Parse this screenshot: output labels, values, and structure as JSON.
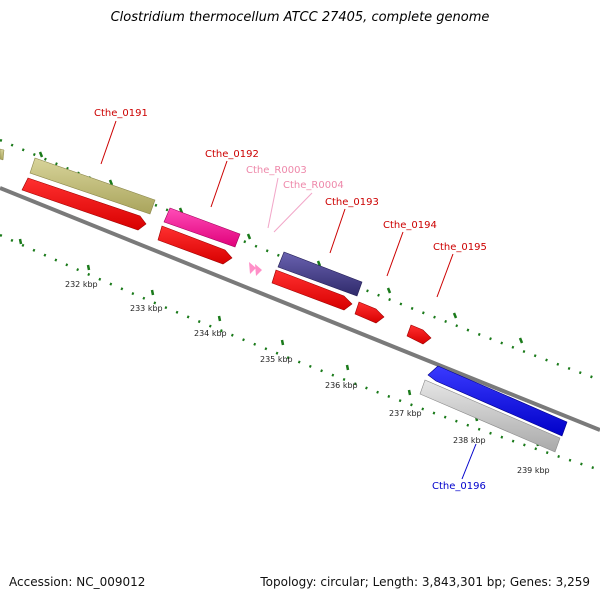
{
  "header": {
    "title": "Clostridium thermocellum ATCC 27405, complete genome"
  },
  "footer": {
    "accession": "Accession: NC_009012",
    "topology": "Topology: circular; Length: 3,843,301 bp; Genes: 3,259"
  },
  "colors": {
    "backbone": "#888888",
    "tick": "#1a7a1a",
    "cds": "#ff0000",
    "label_forward": "#cc0000",
    "label_reverse": "#0000cc",
    "label_rna": "#ee88aa"
  },
  "scale_ticks_kbp": [
    "232 kbp",
    "233 kbp",
    "234 kbp",
    "235 kbp",
    "236 kbp",
    "237 kbp",
    "238 kbp",
    "239 kbp"
  ],
  "features": [
    {
      "name": "Cthe_0191",
      "strand": "+",
      "track_color": "#bdb76b",
      "cds_color": "#ff0000"
    },
    {
      "name": "Cthe_0192",
      "strand": "+",
      "track_color": "#ff1493",
      "cds_color": "#ff0000"
    },
    {
      "name": "Cthe_R0003",
      "strand": "+",
      "type": "RNA",
      "color": "#ff88cc"
    },
    {
      "name": "Cthe_R0004",
      "strand": "+",
      "type": "RNA",
      "color": "#ff88cc"
    },
    {
      "name": "Cthe_0193",
      "strand": "+",
      "track_color": "#483d8b",
      "cds_color": "#ff0000"
    },
    {
      "name": "Cthe_0194",
      "strand": "+",
      "cds_color": "#ff0000"
    },
    {
      "name": "Cthe_0195",
      "strand": "+",
      "cds_color": "#ff0000"
    },
    {
      "name": "Cthe_0196",
      "strand": "-",
      "track_color": "#0000ff",
      "cds_color": "#bbbbbb"
    }
  ]
}
